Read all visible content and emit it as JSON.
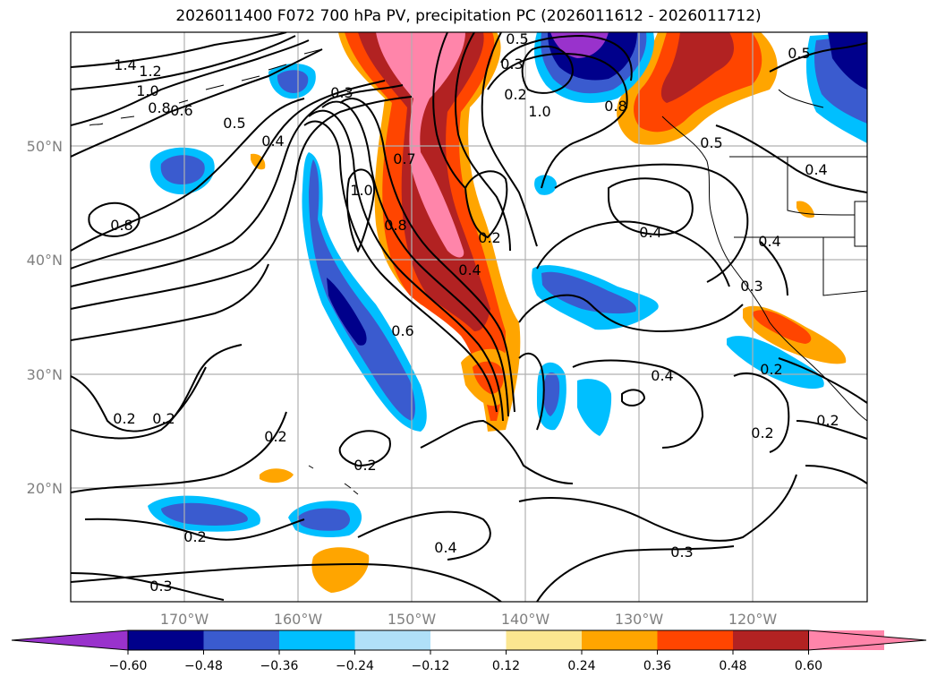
{
  "title": "2026011400 F072 700 hPa PV, precipitation PC (2026011612 - 2026011712)",
  "lat_labels": [
    "50°N",
    "40°N",
    "30°N",
    "20°N"
  ],
  "lon_labels": [
    "170°W",
    "160°W",
    "150°W",
    "140°W",
    "130°W",
    "120°W"
  ],
  "contour_labels": [
    "1.4",
    "1.2",
    "1.0",
    "0.8",
    "0.6",
    "0.5",
    "0.4",
    "0.3",
    "1.0",
    "0.8",
    "0.5",
    "0.3",
    "0.2",
    "0.7",
    "1.0",
    "0.8",
    "0.2",
    "0.4",
    "0.6",
    "0.8",
    "0.2",
    "0.2",
    "0.4",
    "0.2",
    "0.2",
    "0.4",
    "0.2",
    "0.3",
    "0.3",
    "0.2",
    "0.2",
    "0.4",
    "0.3",
    "0.4",
    "0.5",
    "0.4",
    "0.5",
    "0.2"
  ],
  "colorbar": {
    "ticks": [
      "−0.60",
      "−0.48",
      "−0.36",
      "−0.24",
      "−0.12",
      "0.12",
      "0.24",
      "0.36",
      "0.48",
      "0.60"
    ],
    "colors": [
      "#9932cc",
      "#00008b",
      "#3a5bcf",
      "#00bfff",
      "#b0e0f8",
      "#ffffff",
      "#fbe690",
      "#ffa500",
      "#ff4500",
      "#b22222",
      "#ff85aa",
      "#ff85aa"
    ]
  }
}
